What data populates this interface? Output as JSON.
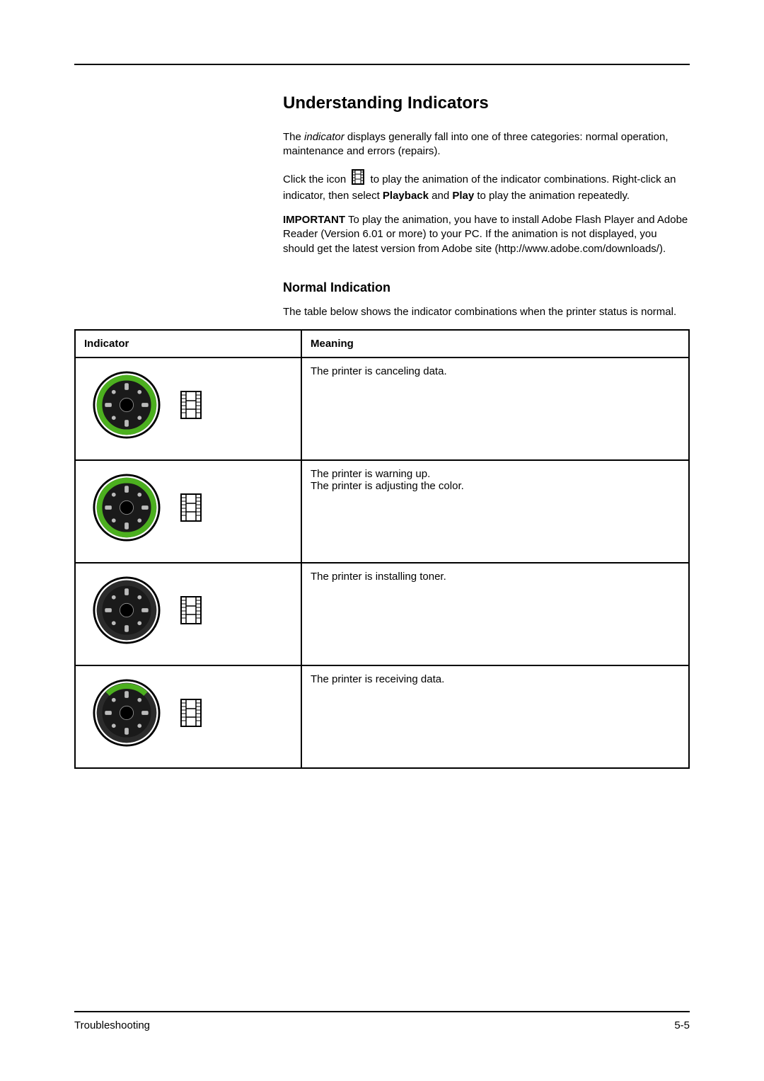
{
  "page": {
    "title": "Understanding Indicators",
    "footer_left": "Troubleshooting",
    "footer_right": "5-5"
  },
  "intro": {
    "p1_a": "The ",
    "p1_italic": "indicator",
    "p1_b": " displays generally fall into one of three categories: normal operation, maintenance and errors (repairs).",
    "p2_a": "Click the icon ",
    "p2_b": " to play the animation of the indicator combinations. Right-click an indicator, then select ",
    "p2_bold1": "Playback",
    "p2_c": " and ",
    "p2_bold2": "Play",
    "p2_d": " to play the animation repeatedly.",
    "p3_bold": "IMPORTANT",
    "p3_rest": "  To play the animation, you have to install Adobe Flash Player and Adobe Reader (Version 6.01 or more) to your PC. If the animation is not displayed, you should get the latest version from Adobe site (http://www.adobe.com/downloads/)."
  },
  "section": {
    "heading": "Normal Indication",
    "lead": "The table below shows the indicator combinations when the printer status is normal."
  },
  "table": {
    "headers": {
      "indicator": "Indicator",
      "meaning": "Meaning"
    },
    "rows": [
      {
        "meaning": "The printer is canceling data.",
        "dial": {
          "ring_color": "#4caf1f",
          "ring_full": true,
          "top_arc_color": null
        }
      },
      {
        "meaning": "The printer is warning up.\nThe printer is adjusting the color.",
        "dial": {
          "ring_color": "#4caf1f",
          "ring_full": true,
          "top_arc_color": null
        }
      },
      {
        "meaning": "The printer is installing toner.",
        "dial": {
          "ring_color": null,
          "ring_full": false,
          "top_arc_color": null
        }
      },
      {
        "meaning": "The printer is receiving data.",
        "dial": {
          "ring_color": null,
          "ring_full": false,
          "top_arc_color": "#4caf1f"
        }
      }
    ]
  },
  "colors": {
    "dial_fill": "#1a1a1a",
    "dial_outline": "#000000",
    "ring_off": "#2b2b2b",
    "led_green": "#4caf1f",
    "led_off": "#2b2b2b",
    "film_icon": "#000000"
  }
}
